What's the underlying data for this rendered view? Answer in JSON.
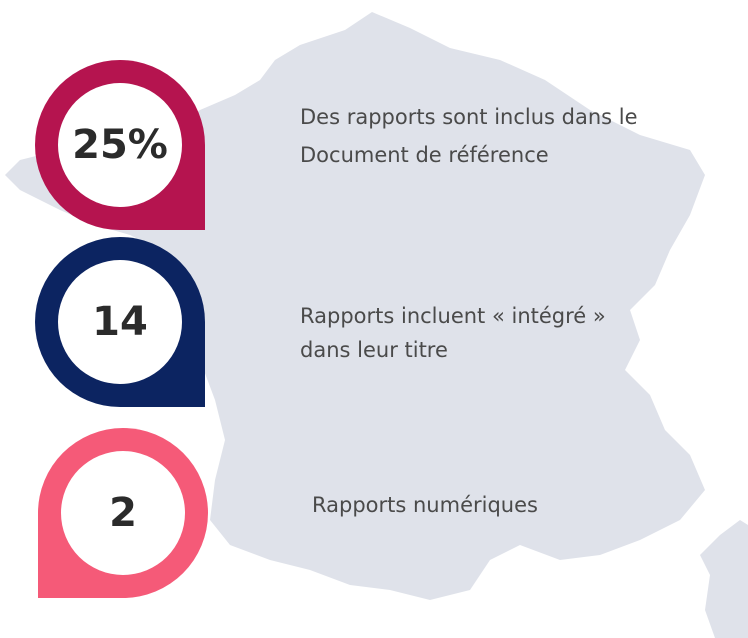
{
  "items": [
    {
      "value": "25%",
      "lines": [
        "Des rapports sont inclus dans le",
        "Document de référence"
      ]
    },
    {
      "value": "14",
      "lines": [
        "Rapports incluent « intégré »",
        "dans leur titre"
      ]
    },
    {
      "value": "2",
      "lines": [
        "Rapports numériques"
      ]
    }
  ]
}
